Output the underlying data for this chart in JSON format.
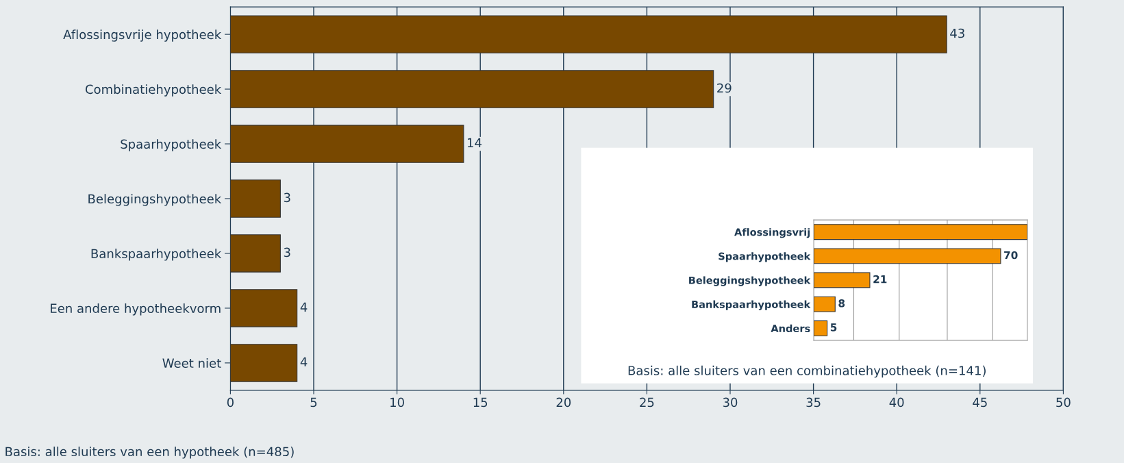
{
  "chart_data": [
    {
      "type": "bar",
      "orientation": "horizontal",
      "categories": [
        "Aflossingsvrije hypotheek",
        "Combinatiehypotheek",
        "Spaarhypotheek",
        "Beleggingshypotheek",
        "Bankspaarhypotheek",
        "Een andere hypotheekvorm",
        "Weet niet"
      ],
      "values": [
        43,
        29,
        14,
        3,
        3,
        4,
        4
      ],
      "color": "#784800",
      "data_labels": true,
      "xlim": [
        0,
        50
      ],
      "xticks": [
        0,
        5,
        10,
        15,
        20,
        25,
        30,
        35,
        40,
        45,
        50
      ],
      "grid": "x",
      "annotations": [
        "Basis: alle sluiters van een hypotheek (n=485)"
      ]
    },
    {
      "type": "bar",
      "orientation": "horizontal",
      "categories": [
        "Aflossingsvrij",
        "Spaarhypotheek",
        "Beleggingshypotheek",
        "Bankspaarhypotheek",
        "Anders"
      ],
      "values": [
        80,
        70,
        21,
        8,
        5
      ],
      "value_labels": [
        null,
        "70",
        "21",
        "8",
        "5"
      ],
      "color": "#f39200",
      "xlim": [
        0,
        80
      ],
      "xticks": [
        {
          "value": 15,
          "label": null
        },
        {
          "value": 32,
          "label": null
        },
        {
          "value": 50,
          "label": null
        },
        {
          "value": 67,
          "label": null
        }
      ],
      "grid": "x",
      "tick_labels": "y",
      "annotations": [
        "Basis: alle sluiters van een combinatiehypotheek (n=141)"
      ]
    }
  ]
}
